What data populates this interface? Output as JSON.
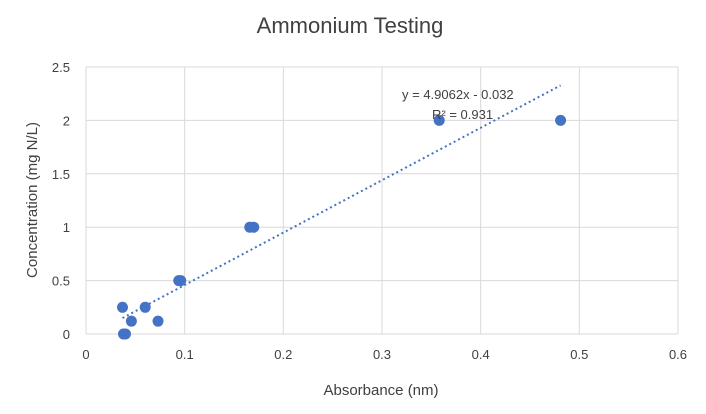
{
  "chart_data": {
    "type": "scatter",
    "title": "Ammonium Testing",
    "xlabel": "Absorbance (nm)",
    "ylabel": "Concentration (mg N/L)",
    "xlim": [
      0,
      0.6
    ],
    "ylim": [
      0,
      2.5
    ],
    "grid": true,
    "x_ticks": [
      "0",
      "0.1",
      "0.2",
      "0.3",
      "0.4",
      "0.5",
      "0.6"
    ],
    "y_ticks": [
      "0",
      "0.5",
      "1",
      "1.5",
      "2",
      "2.5"
    ],
    "series": [
      {
        "color": "#4472c4",
        "points": [
          {
            "x": 0.037,
            "y": 0.25
          },
          {
            "x": 0.038,
            "y": 0.0
          },
          {
            "x": 0.04,
            "y": 0.0
          },
          {
            "x": 0.046,
            "y": 0.12
          },
          {
            "x": 0.06,
            "y": 0.25
          },
          {
            "x": 0.073,
            "y": 0.12
          },
          {
            "x": 0.094,
            "y": 0.5
          },
          {
            "x": 0.096,
            "y": 0.5
          },
          {
            "x": 0.166,
            "y": 1.0
          },
          {
            "x": 0.17,
            "y": 1.0
          },
          {
            "x": 0.358,
            "y": 2.0
          },
          {
            "x": 0.481,
            "y": 2.0
          }
        ]
      }
    ],
    "trendline": {
      "type": "linear",
      "slope": 4.9062,
      "intercept": -0.032,
      "x_range": [
        0.037,
        0.481
      ],
      "equation_label": "y = 4.9062x - 0.032",
      "r2_label": "R² = 0.931",
      "color": "#4472c4"
    }
  }
}
